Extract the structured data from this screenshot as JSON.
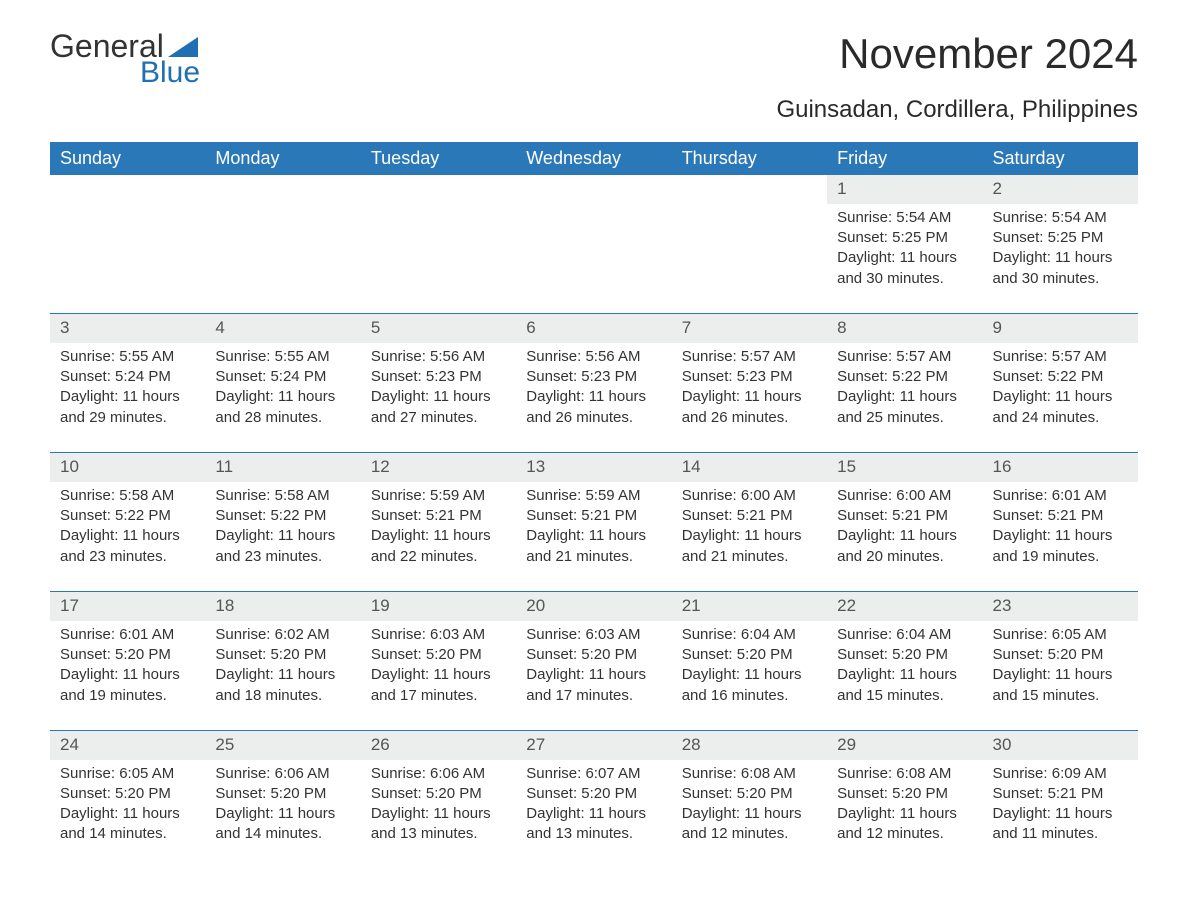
{
  "logo": {
    "word1": "General",
    "word2": "Blue",
    "triangle_color": "#1f6fb2"
  },
  "title": "November 2024",
  "location": "Guinsadan, Cordillera, Philippines",
  "colors": {
    "header_bg": "#2b78b8",
    "header_text": "#ffffff",
    "daynum_bg": "#eceded",
    "row_border": "#2b78b8",
    "text": "#333333",
    "logo_blue": "#1f6fb2",
    "background": "#ffffff"
  },
  "weekdays": [
    "Sunday",
    "Monday",
    "Tuesday",
    "Wednesday",
    "Thursday",
    "Friday",
    "Saturday"
  ],
  "weeks": [
    [
      null,
      null,
      null,
      null,
      null,
      {
        "d": "1",
        "sr": "5:54 AM",
        "ss": "5:25 PM",
        "dl": "11 hours and 30 minutes."
      },
      {
        "d": "2",
        "sr": "5:54 AM",
        "ss": "5:25 PM",
        "dl": "11 hours and 30 minutes."
      }
    ],
    [
      {
        "d": "3",
        "sr": "5:55 AM",
        "ss": "5:24 PM",
        "dl": "11 hours and 29 minutes."
      },
      {
        "d": "4",
        "sr": "5:55 AM",
        "ss": "5:24 PM",
        "dl": "11 hours and 28 minutes."
      },
      {
        "d": "5",
        "sr": "5:56 AM",
        "ss": "5:23 PM",
        "dl": "11 hours and 27 minutes."
      },
      {
        "d": "6",
        "sr": "5:56 AM",
        "ss": "5:23 PM",
        "dl": "11 hours and 26 minutes."
      },
      {
        "d": "7",
        "sr": "5:57 AM",
        "ss": "5:23 PM",
        "dl": "11 hours and 26 minutes."
      },
      {
        "d": "8",
        "sr": "5:57 AM",
        "ss": "5:22 PM",
        "dl": "11 hours and 25 minutes."
      },
      {
        "d": "9",
        "sr": "5:57 AM",
        "ss": "5:22 PM",
        "dl": "11 hours and 24 minutes."
      }
    ],
    [
      {
        "d": "10",
        "sr": "5:58 AM",
        "ss": "5:22 PM",
        "dl": "11 hours and 23 minutes."
      },
      {
        "d": "11",
        "sr": "5:58 AM",
        "ss": "5:22 PM",
        "dl": "11 hours and 23 minutes."
      },
      {
        "d": "12",
        "sr": "5:59 AM",
        "ss": "5:21 PM",
        "dl": "11 hours and 22 minutes."
      },
      {
        "d": "13",
        "sr": "5:59 AM",
        "ss": "5:21 PM",
        "dl": "11 hours and 21 minutes."
      },
      {
        "d": "14",
        "sr": "6:00 AM",
        "ss": "5:21 PM",
        "dl": "11 hours and 21 minutes."
      },
      {
        "d": "15",
        "sr": "6:00 AM",
        "ss": "5:21 PM",
        "dl": "11 hours and 20 minutes."
      },
      {
        "d": "16",
        "sr": "6:01 AM",
        "ss": "5:21 PM",
        "dl": "11 hours and 19 minutes."
      }
    ],
    [
      {
        "d": "17",
        "sr": "6:01 AM",
        "ss": "5:20 PM",
        "dl": "11 hours and 19 minutes."
      },
      {
        "d": "18",
        "sr": "6:02 AM",
        "ss": "5:20 PM",
        "dl": "11 hours and 18 minutes."
      },
      {
        "d": "19",
        "sr": "6:03 AM",
        "ss": "5:20 PM",
        "dl": "11 hours and 17 minutes."
      },
      {
        "d": "20",
        "sr": "6:03 AM",
        "ss": "5:20 PM",
        "dl": "11 hours and 17 minutes."
      },
      {
        "d": "21",
        "sr": "6:04 AM",
        "ss": "5:20 PM",
        "dl": "11 hours and 16 minutes."
      },
      {
        "d": "22",
        "sr": "6:04 AM",
        "ss": "5:20 PM",
        "dl": "11 hours and 15 minutes."
      },
      {
        "d": "23",
        "sr": "6:05 AM",
        "ss": "5:20 PM",
        "dl": "11 hours and 15 minutes."
      }
    ],
    [
      {
        "d": "24",
        "sr": "6:05 AM",
        "ss": "5:20 PM",
        "dl": "11 hours and 14 minutes."
      },
      {
        "d": "25",
        "sr": "6:06 AM",
        "ss": "5:20 PM",
        "dl": "11 hours and 14 minutes."
      },
      {
        "d": "26",
        "sr": "6:06 AM",
        "ss": "5:20 PM",
        "dl": "11 hours and 13 minutes."
      },
      {
        "d": "27",
        "sr": "6:07 AM",
        "ss": "5:20 PM",
        "dl": "11 hours and 13 minutes."
      },
      {
        "d": "28",
        "sr": "6:08 AM",
        "ss": "5:20 PM",
        "dl": "11 hours and 12 minutes."
      },
      {
        "d": "29",
        "sr": "6:08 AM",
        "ss": "5:20 PM",
        "dl": "11 hours and 12 minutes."
      },
      {
        "d": "30",
        "sr": "6:09 AM",
        "ss": "5:21 PM",
        "dl": "11 hours and 11 minutes."
      }
    ]
  ],
  "labels": {
    "sunrise": "Sunrise: ",
    "sunset": "Sunset: ",
    "daylight": "Daylight: "
  }
}
